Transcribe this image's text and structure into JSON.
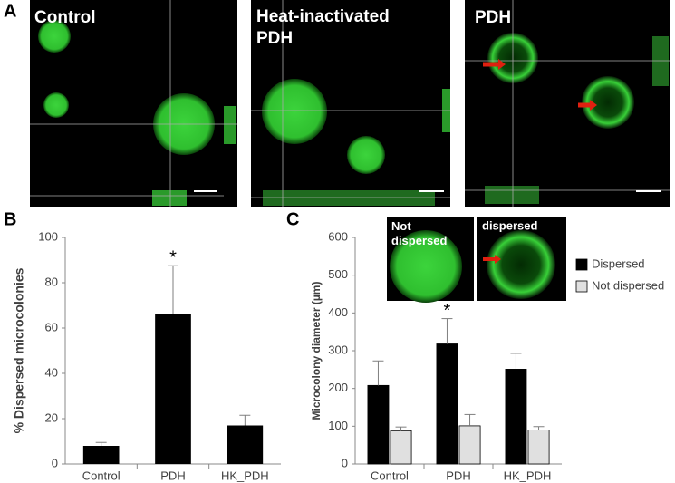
{
  "figure": {
    "panel_labels": [
      "A",
      "B",
      "C"
    ],
    "image_titles": [
      "Control",
      "Heat-inactivated PDH",
      "PDH"
    ],
    "inset_titles": [
      "Not dispersed",
      "dispersed"
    ]
  },
  "chart_data": [
    {
      "type": "bar",
      "y_label": "% Dispersed microcolonies",
      "categories": [
        "Control",
        "PDH",
        "HK_PDH"
      ],
      "values": [
        8,
        66,
        17
      ],
      "errors": [
        1.5,
        21.5,
        4.5
      ],
      "color": "#000000",
      "annotation": "*",
      "ylim": [
        0,
        100
      ],
      "yticks": [
        0,
        20,
        40,
        60,
        80,
        100
      ]
    },
    {
      "type": "bar",
      "y_label": "Microcolony diameter (µm)",
      "categories": [
        "Control",
        "PDH",
        "HK_PDH"
      ],
      "series": [
        {
          "name": "Dispersed",
          "color": "#000000",
          "values": [
            208,
            318,
            251
          ],
          "errors": [
            65,
            67,
            42
          ]
        },
        {
          "name": "Not dispersed",
          "color": "#e0e0e0",
          "values": [
            88,
            101,
            90
          ],
          "errors": [
            10,
            30,
            9
          ]
        }
      ],
      "annotation": "*",
      "ylim": [
        0,
        600
      ],
      "yticks": [
        0,
        100,
        200,
        300,
        400,
        500,
        600
      ],
      "legend": "right"
    }
  ]
}
